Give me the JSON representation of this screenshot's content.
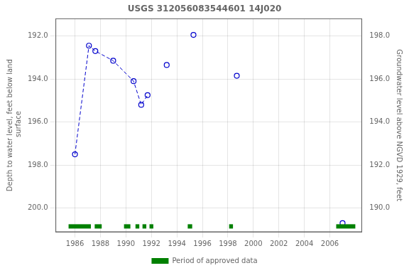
{
  "chart_data": {
    "type": "scatter",
    "title": "USGS 312056083544601 14J020",
    "ylabel": "Depth to water level, feet below land\n surface",
    "y2label": "Groundwater level above NGVD 1929, feet",
    "xlim": [
      1984.5,
      2008.5
    ],
    "xticks": [
      1986,
      1988,
      1990,
      1992,
      1994,
      1996,
      1998,
      2000,
      2002,
      2004,
      2006
    ],
    "ylim": [
      201.1,
      191.2
    ],
    "yticks": [
      {
        "value": 192.0,
        "label": "192.0"
      },
      {
        "value": 194.0,
        "label": "194.0"
      },
      {
        "value": 196.0,
        "label": "196.0"
      },
      {
        "value": 198.0,
        "label": "198.0"
      },
      {
        "value": 200.0,
        "label": "200.0"
      }
    ],
    "y2lim": [
      188.9,
      198.8
    ],
    "y2ticks": [
      {
        "value": 198.0,
        "label": "198.0"
      },
      {
        "value": 196.0,
        "label": "196.0"
      },
      {
        "value": 194.0,
        "label": "194.0"
      },
      {
        "value": 192.0,
        "label": "192.0"
      },
      {
        "value": 190.0,
        "label": "190.0"
      }
    ],
    "grid": true,
    "legend": "bottom",
    "series": [
      {
        "type": "line",
        "line_style": "dashed",
        "color": "#0000cc",
        "x": [
          1986.0,
          1987.1,
          1987.6,
          1989.0,
          1990.6,
          1991.2,
          1991.7
        ],
        "values": [
          197.5,
          192.45,
          192.7,
          193.15,
          194.1,
          195.2,
          194.75
        ]
      },
      {
        "type": "scatter",
        "marker": "open_circle",
        "color": "#0000cc",
        "x": [
          1986.0,
          1987.1,
          1987.6,
          1989.0,
          1990.6,
          1991.2,
          1991.7,
          1993.2,
          1995.3,
          1998.7,
          2007.0
        ],
        "values": [
          197.5,
          192.45,
          192.7,
          193.15,
          194.1,
          195.2,
          194.75,
          193.35,
          191.95,
          193.85,
          200.7
        ]
      },
      {
        "type": "bar",
        "name": "Period of approved data",
        "color": "#008000",
        "y": 200.85,
        "height": 0.2,
        "ranges": [
          [
            1985.5,
            1987.25
          ],
          [
            1987.55,
            1988.1
          ],
          [
            1989.85,
            1990.35
          ],
          [
            1990.75,
            1991.05
          ],
          [
            1991.3,
            1991.6
          ],
          [
            1991.85,
            1992.15
          ],
          [
            1994.85,
            1995.2
          ],
          [
            1998.1,
            1998.4
          ],
          [
            2006.5,
            2008.0
          ]
        ]
      }
    ]
  }
}
